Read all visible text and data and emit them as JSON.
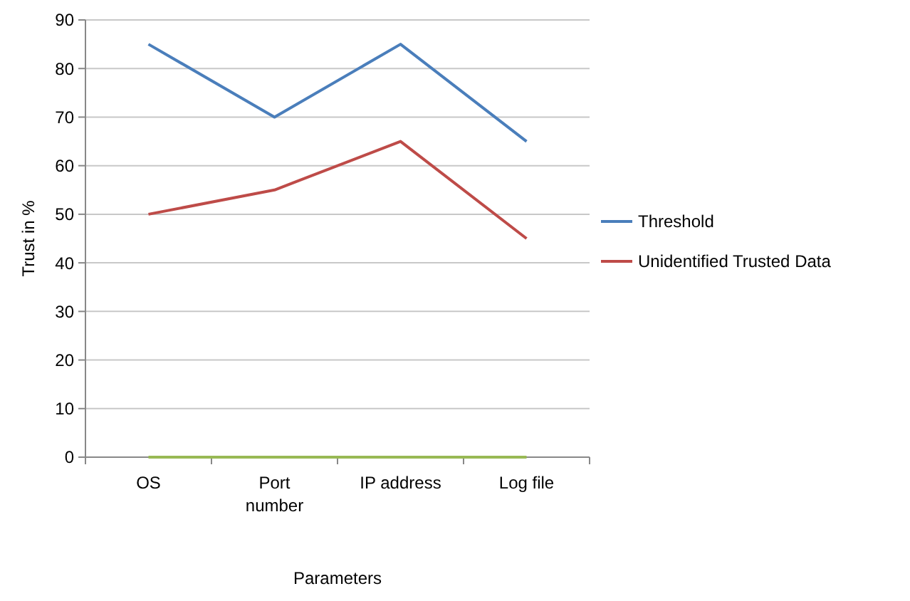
{
  "chart_data": {
    "type": "line",
    "xlabel": "Parameters",
    "ylabel": "Trust in %",
    "categories": [
      "OS",
      "Port number",
      "IP address",
      "Log file"
    ],
    "series": [
      {
        "name": "Threshold",
        "color": "#4a7ebb",
        "values": [
          85,
          70,
          85,
          65
        ]
      },
      {
        "name": "Unidentified Trusted Data",
        "color": "#be4b48",
        "values": [
          50,
          55,
          65,
          45
        ]
      },
      {
        "color": "#98b954",
        "values": [
          0,
          0,
          0,
          0
        ]
      }
    ],
    "ylim": [
      0,
      90
    ],
    "yticks": [
      0,
      10,
      20,
      30,
      40,
      50,
      60,
      70,
      80,
      90
    ],
    "grid": "y",
    "legend": "right",
    "marker": "none",
    "line_style": "solid"
  }
}
